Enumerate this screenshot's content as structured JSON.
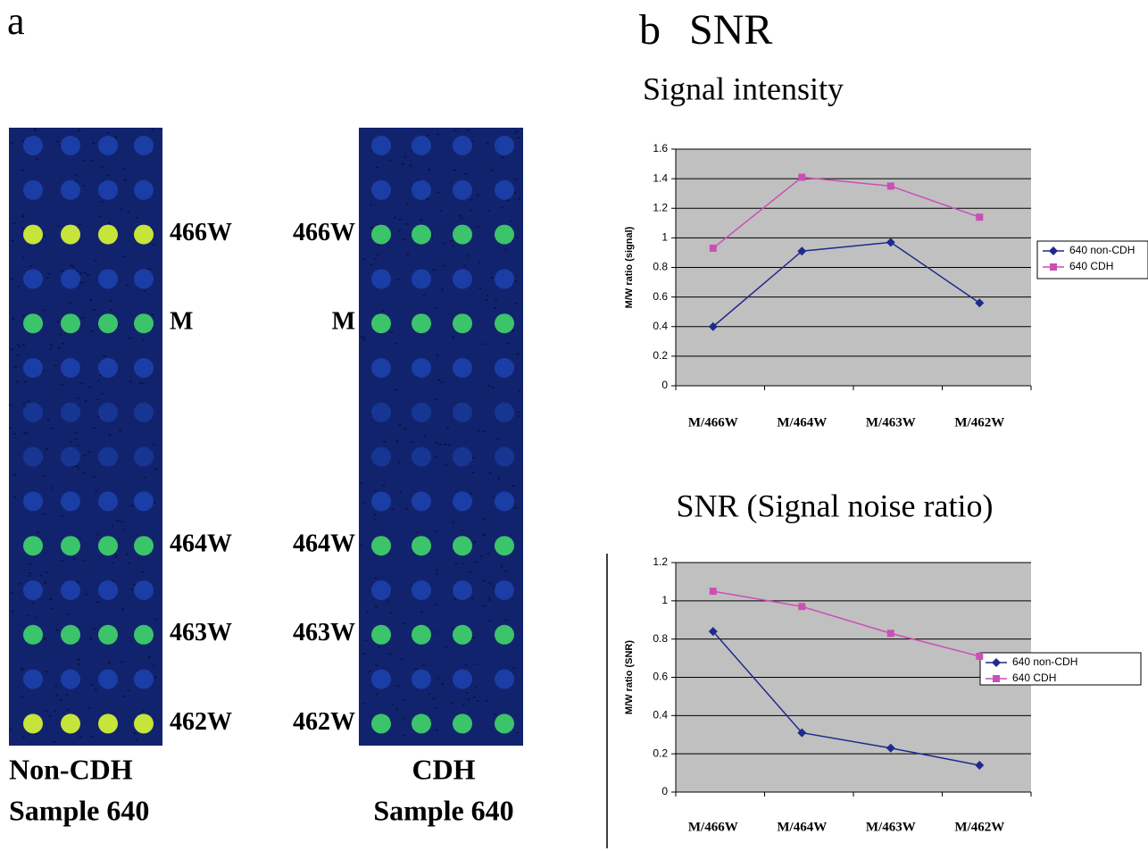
{
  "panel_a": {
    "label": "a",
    "arrays": [
      {
        "row_labels": [
          "466W",
          "M",
          "464W",
          "463W",
          "462W"
        ],
        "caption": [
          "Non-CDH",
          "Sample 640"
        ]
      },
      {
        "row_labels": [
          "466W",
          "M",
          "464W",
          "463W",
          "462W"
        ],
        "caption": [
          "CDH",
          "Sample 640"
        ]
      }
    ]
  },
  "panel_b": {
    "label": "b",
    "title": "SNR"
  },
  "chart_data": [
    {
      "type": "line",
      "title": "Signal intensity",
      "y_label": "M/W ratio (signal)",
      "categories": [
        "M/466W",
        "M/464W",
        "M/463W",
        "M/462W"
      ],
      "series": [
        {
          "name": "640 non-CDH",
          "color": "#1f2a8c",
          "marker": "diamond",
          "values": [
            0.4,
            0.91,
            0.97,
            0.56
          ]
        },
        {
          "name": "640 CDH",
          "color": "#cc4fb5",
          "marker": "square",
          "values": [
            0.93,
            1.41,
            1.35,
            1.14
          ]
        }
      ],
      "ylim": [
        0,
        1.6
      ],
      "yticks": [
        0,
        0.2,
        0.4,
        0.6,
        0.8,
        1,
        1.2,
        1.4,
        1.6
      ],
      "grid": true
    },
    {
      "type": "line",
      "title": "SNR (Signal noise ratio)",
      "y_label": "M/W ratio (SNR)",
      "categories": [
        "M/466W",
        "M/464W",
        "M/463W",
        "M/462W"
      ],
      "series": [
        {
          "name": "640 non-CDH",
          "color": "#1f2a8c",
          "marker": "diamond",
          "values": [
            0.84,
            0.31,
            0.23,
            0.14
          ]
        },
        {
          "name": "640 CDH",
          "color": "#cc4fb5",
          "marker": "square",
          "values": [
            1.05,
            0.97,
            0.83,
            0.71
          ]
        }
      ],
      "ylim": [
        0,
        1.2
      ],
      "yticks": [
        0,
        0.2,
        0.4,
        0.6,
        0.8,
        1,
        1.2
      ],
      "grid": true
    }
  ]
}
